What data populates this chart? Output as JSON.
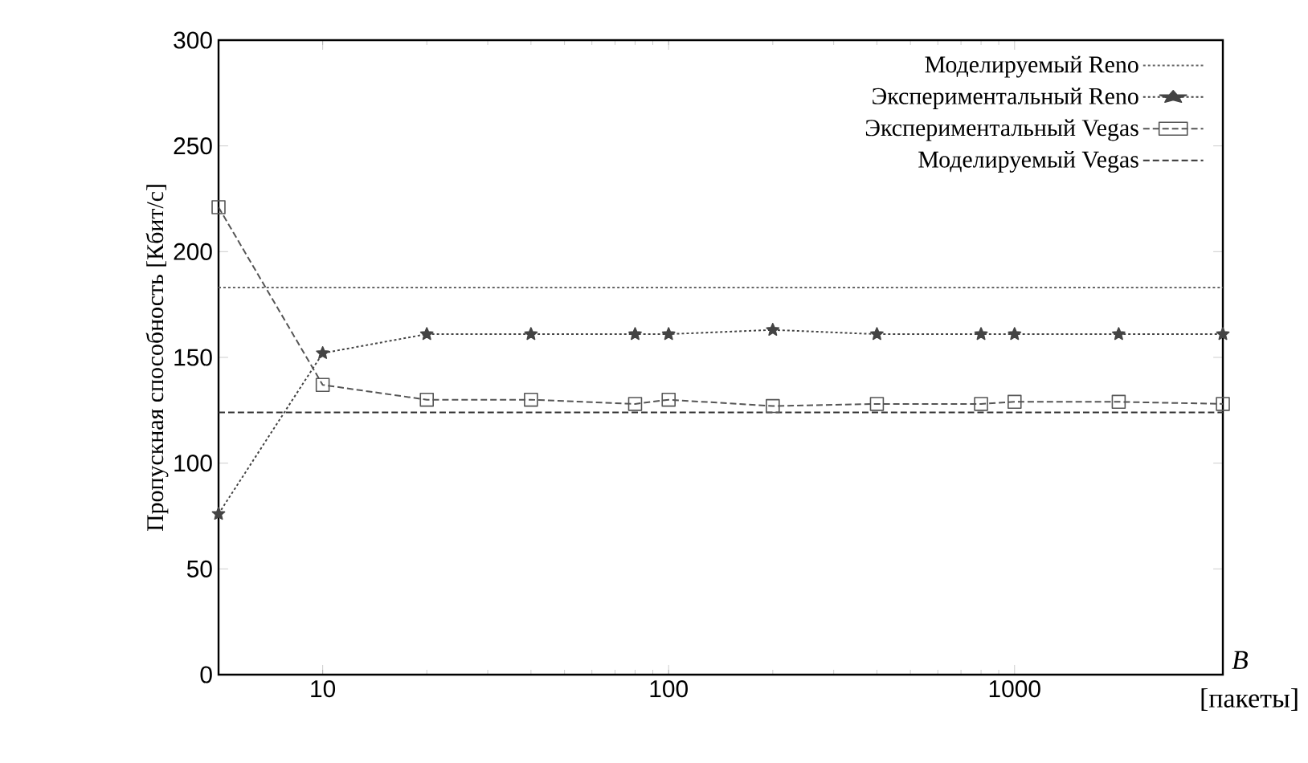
{
  "chart_data": {
    "type": "line",
    "ylabel": "Пропускная способность [Кбит/с]",
    "xlabel": "B",
    "log": "x",
    "xlim": [
      5,
      4000
    ],
    "ylim": [
      0,
      300
    ],
    "xticks": [
      10,
      100,
      1000
    ],
    "yticks": [
      0,
      50,
      100,
      150,
      200,
      250,
      300
    ],
    "legend": "top right",
    "annotations": [
      "[пакеты]"
    ],
    "series": [
      {
        "name": "Моделируемый Reno",
        "color": "#666666",
        "x": [
          5,
          4000
        ],
        "values": [
          183,
          183
        ],
        "marker": "none",
        "line_style": "dotted"
      },
      {
        "name": "Экспериментальный Reno",
        "color": "#444444",
        "x": [
          5,
          10,
          20,
          40,
          80,
          100,
          200,
          400,
          800,
          1000,
          2000,
          4000
        ],
        "values": [
          76,
          152,
          161,
          161,
          161,
          161,
          163,
          161,
          161,
          161,
          161,
          161
        ],
        "marker": "star",
        "line_style": "dotted"
      },
      {
        "name": "Экспериментальный Vegas",
        "color": "#555555",
        "x": [
          5,
          10,
          20,
          40,
          80,
          100,
          200,
          400,
          800,
          1000,
          2000,
          4000
        ],
        "values": [
          221,
          137,
          130,
          130,
          128,
          130,
          127,
          128,
          128,
          129,
          129,
          128
        ],
        "marker": "square",
        "line_style": "dashed"
      },
      {
        "name": "Моделируемый Vegas",
        "color": "#333333",
        "x": [
          5,
          4000
        ],
        "values": [
          124,
          124
        ],
        "marker": "none",
        "line_style": "dashed"
      }
    ]
  }
}
